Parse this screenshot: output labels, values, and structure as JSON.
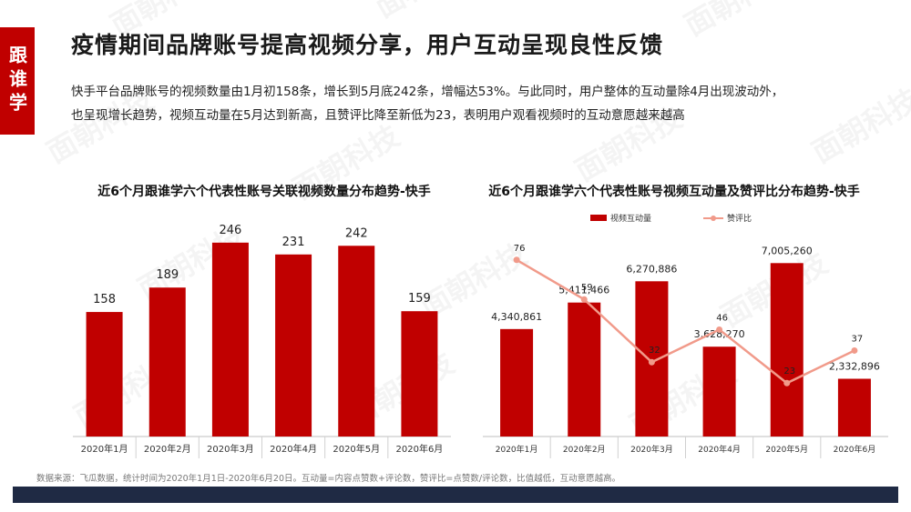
{
  "side_tag": "跟谁学",
  "headline": "疫情期间品牌账号提高视频分享，用户互动呈现良性反馈",
  "description": [
    "快手平台品牌账号的视频数量由1月初158条，增长到5月底242条，增幅达53%。与此同时，用户整体的互动量除4月出现波动外，",
    "也呈现增长趋势，视频互动量在5月达到新高，且赞评比降至新低为23，表明用户观看视频时的互动意愿越来越高"
  ],
  "footer_note": "数据来源：飞瓜数据，统计时间为2020年1月1日-2020年6月20日。互动量=内容点赞数+评论数，赞评比=点赞数/评论数，比值越低，互动意愿越高。",
  "watermark_text": "面朝科技",
  "colors": {
    "accent": "#c00000",
    "line": "#f19a8a",
    "footer_bar": "#1f2a44"
  },
  "chart_data": [
    {
      "type": "bar",
      "title": "近6个月跟谁学六个代表性账号关联视频数量分布趋势-快手",
      "categories": [
        "2020年1月",
        "2020年2月",
        "2020年3月",
        "2020年4月",
        "2020年5月",
        "2020年6月"
      ],
      "values": [
        158,
        189,
        246,
        231,
        242,
        159
      ],
      "data_labels": [
        "158",
        "189",
        "246",
        "231",
        "242",
        "159"
      ],
      "ylim": [
        0,
        300
      ]
    },
    {
      "type": "bar+line",
      "title": "近6个月跟谁学六个代表性账号视频互动量及赞评比分布趋势-快手",
      "categories": [
        "2020年1月",
        "2020年2月",
        "2020年3月",
        "2020年4月",
        "2020年5月",
        "2020年6月"
      ],
      "legend": [
        "视频互动量",
        "赞评比"
      ],
      "series": [
        {
          "name": "视频互动量",
          "type": "bar",
          "values": [
            4340861,
            5411466,
            6270886,
            3628270,
            7005260,
            2332896
          ],
          "data_labels": [
            "4,340,861",
            "5,411,466",
            "6,270,886",
            "3,628,270",
            "7,005,260",
            "2,332,896"
          ],
          "ylim": [
            0,
            9000000
          ]
        },
        {
          "name": "赞评比",
          "type": "line",
          "values": [
            76,
            59,
            32,
            46,
            23,
            37
          ],
          "data_labels": [
            "76",
            "59",
            "32",
            "46",
            "23",
            "37"
          ],
          "ylim": [
            0,
            90
          ]
        }
      ]
    }
  ]
}
